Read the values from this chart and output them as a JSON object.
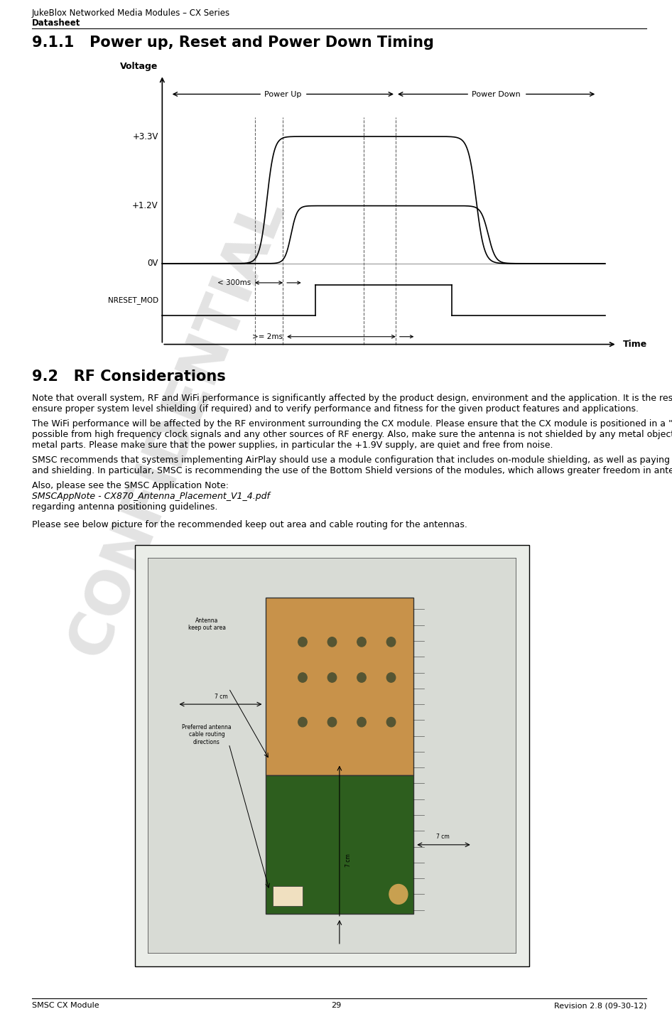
{
  "header_line1": "JukeBlox Networked Media Modules – CX Series",
  "header_line2": "Datasheet",
  "section_title": "9.1.1   Power up, Reset and Power Down Timing",
  "footer_left": "SMSC CX Module",
  "footer_center": "29",
  "footer_right": "Revision 2.8 (09-30-12)",
  "voltage_label": "Voltage",
  "time_label": "Time",
  "y_ticks": [
    "+3.3V",
    "+1.2V",
    "0V"
  ],
  "power_up_label": "Power Up",
  "power_down_label": "Power Down",
  "lt300ms_label": "< 300ms",
  "ge2ms_label": ">= 2ms",
  "nreset_label": "NRESET_MOD",
  "section_92_title": "9.2   RF Considerations",
  "para1": "Note that overall system, RF and WiFi performance is significantly affected by the product design, environment and the application. It is the responsibility of the product designer to ensure proper system level shielding (if required) and to verify performance and fitness for the given product features and applications.",
  "para2": "The WiFi performance will be affected by the RF environment surrounding the CX module. Please ensure that the CX module is positioned in a \"quiet\" RF environment, as far away as possible from high frequency clock signals and any other sources of RF energy. Also, make sure the antenna is not shielded by any metal objects, for example loudspeakers or other metal parts. Please make sure that the power supplies, in particular the +1.9V supply, are quiet and free from noise.",
  "para3": "SMSC recommends that systems implementing AirPlay should use a module configuration that includes on-module shielding, as well as paying particular attention to system configuration and shielding. In particular, SMSC is recommending the use of the Bottom Shield versions of the modules, which allows greater freedom in antenna positioning.",
  "para4a": "Also, please see the SMSC Application Note:",
  "para4b": "SMSCAppNote - CX870_Antenna_Placement_V1_4.pdf",
  "para4c": "regarding antenna positioning guidelines.",
  "para5": "Please see below picture for the recommended keep out area and cable routing for the antennas.",
  "img_label_antenna": "Preferred antenna\ncable routing\ndirections",
  "img_label_keepout": "Antenna\nkeep out area",
  "img_label_7cm_top": "7 cm",
  "img_label_7cm_left": "7 cm",
  "img_label_7cm_right": "7 cm",
  "bg_color": "#ffffff",
  "text_color": "#000000",
  "watermark_text": "CONFIDENTIAL",
  "img_outer_bg": "#eaede8",
  "img_inner_bg": "#d8dbd5",
  "pcb_color": "#c8955a",
  "pcb_top_color": "#2d5a1b",
  "pcb_connector_color": "#888888"
}
